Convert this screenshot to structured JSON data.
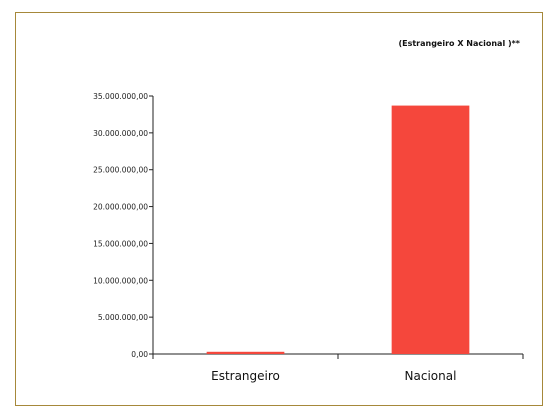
{
  "chart_data": {
    "type": "bar",
    "title": "(Estrangeiro X Nacional )**",
    "categories": [
      "Estrangeiro",
      "Nacional"
    ],
    "values": [
      300000,
      33700000
    ],
    "ylim": [
      0,
      35000000
    ],
    "yticks": [
      {
        "value": 0,
        "label": "0,00"
      },
      {
        "value": 5000000,
        "label": "5.000.000,00"
      },
      {
        "value": 10000000,
        "label": "10.000.000,00"
      },
      {
        "value": 15000000,
        "label": "15.000.000,00"
      },
      {
        "value": 20000000,
        "label": "20.000.000,00"
      },
      {
        "value": 25000000,
        "label": "25.000.000,00"
      },
      {
        "value": 30000000,
        "label": "30.000.000,00"
      },
      {
        "value": 35000000,
        "label": "35.000.000,00"
      }
    ],
    "bar_color": "#f5473c",
    "grid": false,
    "legend": "none"
  }
}
